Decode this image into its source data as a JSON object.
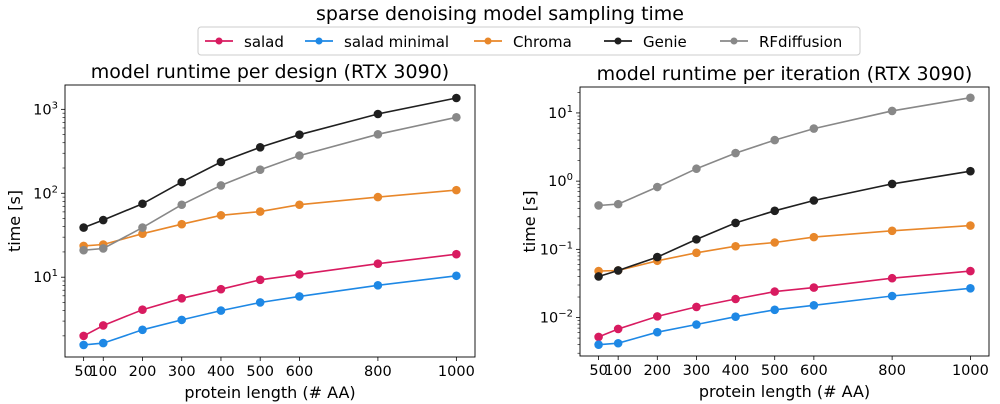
{
  "suptitle": "sparse denoising model sampling time",
  "legend": {
    "placement": "top-center",
    "items": [
      {
        "name": "salad",
        "color": "#d81b60"
      },
      {
        "name": "salad minimal",
        "color": "#1e88e5"
      },
      {
        "name": "Chroma",
        "color": "#e8872a"
      },
      {
        "name": "Genie",
        "color": "#1f1f1f"
      },
      {
        "name": "RFdiffusion",
        "color": "#888888"
      }
    ]
  },
  "chart_data": [
    {
      "type": "line",
      "title": "model runtime per design (RTX 3090)",
      "xlabel": "protein length (# AA)",
      "ylabel": "time [s]",
      "yscale": "log",
      "xlim": [
        2.5,
        1047.5
      ],
      "ylim": [
        1.12,
        1950
      ],
      "xticks": [
        50,
        100,
        200,
        300,
        400,
        500,
        600,
        800,
        1000
      ],
      "yticks": [
        {
          "value": 10,
          "base": "10",
          "exp": "1"
        },
        {
          "value": 100,
          "base": "10",
          "exp": "2"
        },
        {
          "value": 1000,
          "base": "10",
          "exp": "3"
        }
      ],
      "grid": false,
      "x": [
        50,
        100,
        200,
        300,
        400,
        500,
        600,
        800,
        1000
      ],
      "series": [
        {
          "name": "salad",
          "color": "#d81b60",
          "values": [
            2.0,
            2.66,
            4.1,
            5.6,
            7.2,
            9.3,
            10.8,
            14.5,
            18.8
          ]
        },
        {
          "name": "salad minimal",
          "color": "#1e88e5",
          "values": [
            1.56,
            1.64,
            2.36,
            3.1,
            4.0,
            5.0,
            5.9,
            8.0,
            10.4
          ]
        },
        {
          "name": "Chroma",
          "color": "#e8872a",
          "values": [
            23.6,
            24.5,
            33,
            42.8,
            54.7,
            60.5,
            73,
            90,
            109
          ]
        },
        {
          "name": "Genie",
          "color": "#1f1f1f",
          "values": [
            39,
            48,
            75,
            136,
            236,
            353,
            499,
            880,
            1365
          ]
        },
        {
          "name": "RFdiffusion",
          "color": "#888888",
          "values": [
            21,
            22,
            39,
            73,
            124,
            191,
            281,
            504,
            804
          ]
        }
      ]
    },
    {
      "type": "line",
      "title": "model runtime per iteration (RTX 3090)",
      "xlabel": "protein length (# AA)",
      "ylabel": "time [s]",
      "yscale": "log",
      "xlim": [
        2.5,
        1047.5
      ],
      "ylim": [
        0.00273,
        24
      ],
      "xticks": [
        50,
        100,
        200,
        300,
        400,
        500,
        600,
        800,
        1000
      ],
      "yticks": [
        {
          "value": 0.01,
          "base": "10",
          "exp": "−2"
        },
        {
          "value": 0.1,
          "base": "10",
          "exp": "−1"
        },
        {
          "value": 1,
          "base": "10",
          "exp": "0"
        },
        {
          "value": 10,
          "base": "10",
          "exp": "1"
        }
      ],
      "grid": false,
      "x": [
        50,
        100,
        200,
        300,
        400,
        500,
        600,
        800,
        1000
      ],
      "series": [
        {
          "name": "salad",
          "color": "#d81b60",
          "values": [
            0.0052,
            0.0068,
            0.0104,
            0.0143,
            0.0187,
            0.024,
            0.0275,
            0.0377,
            0.048
          ]
        },
        {
          "name": "salad minimal",
          "color": "#1e88e5",
          "values": [
            0.004,
            0.0042,
            0.0061,
            0.0079,
            0.0103,
            0.013,
            0.0151,
            0.0207,
            0.0268
          ]
        },
        {
          "name": "Chroma",
          "color": "#e8872a",
          "values": [
            0.048,
            0.049,
            0.068,
            0.089,
            0.111,
            0.126,
            0.151,
            0.187,
            0.223
          ]
        },
        {
          "name": "Genie",
          "color": "#1f1f1f",
          "values": [
            0.04,
            0.049,
            0.077,
            0.14,
            0.244,
            0.367,
            0.52,
            0.91,
            1.4
          ]
        },
        {
          "name": "RFdiffusion",
          "color": "#888888",
          "values": [
            0.44,
            0.46,
            0.82,
            1.52,
            2.58,
            4.0,
            5.9,
            10.7,
            16.7
          ]
        }
      ]
    }
  ]
}
